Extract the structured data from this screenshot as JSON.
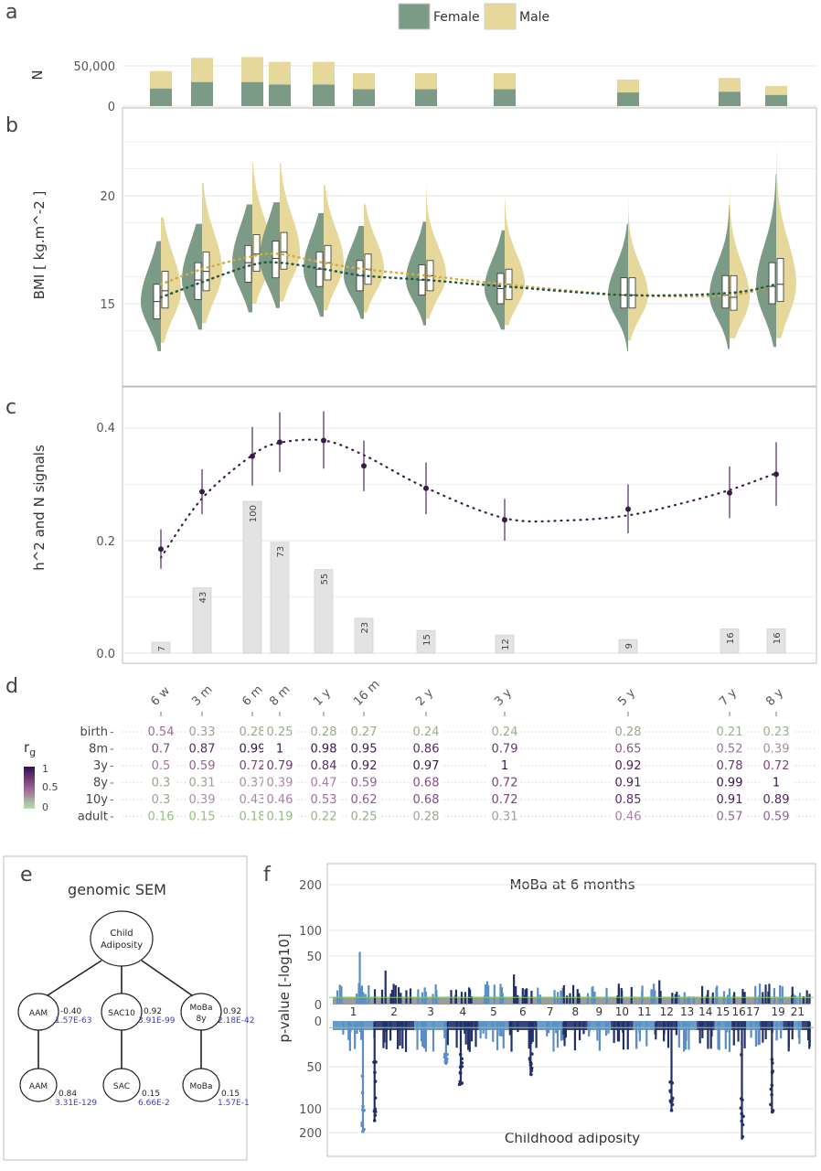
{
  "panel_letters": [
    "a",
    "b",
    "c",
    "d",
    "e",
    "f"
  ],
  "colors": {
    "female": "#7c9b87",
    "male": "#e6d89b",
    "female_line": "#24584a",
    "male_line": "#cfae3e",
    "h2_point": "#3b1a4a",
    "n_bar": "#e3e3e3",
    "grid": "#e6e6e6",
    "manhattan_light": "#5b8ec6",
    "manhattan_dark": "#22306a",
    "manhattan_grey": "#8a8a8a",
    "sem_blue": "#3f3fbf"
  },
  "chart_data": [
    {
      "panel": "a",
      "type": "bar",
      "stacked": true,
      "ylabel": "N",
      "yticks": [
        0,
        50000
      ],
      "ytick_labels": [
        "0",
        "50,000"
      ],
      "ylim": [
        0,
        70000
      ],
      "legend": {
        "position": "top",
        "entries": [
          "Female",
          "Male"
        ]
      },
      "categories": [
        "6 w",
        "3 m",
        "6 m",
        "8 m",
        "1 y",
        "16 m",
        "2 y",
        "3 y",
        "5 y",
        "7 y",
        "8 y"
      ],
      "x_months": [
        1.5,
        3,
        6,
        8,
        12,
        16,
        24,
        36,
        60,
        84,
        96
      ],
      "series": [
        {
          "name": "Female",
          "values": [
            22000,
            30000,
            30000,
            27000,
            27000,
            21000,
            21000,
            21000,
            17000,
            18000,
            14000
          ]
        },
        {
          "name": "Male",
          "values": [
            21500,
            30000,
            31000,
            28000,
            28000,
            20000,
            20000,
            20000,
            16000,
            17000,
            11000
          ]
        }
      ]
    },
    {
      "panel": "b",
      "type": "violin",
      "ylabel": "BMI [ kg.m^-2 ]",
      "yticks": [
        15,
        20
      ],
      "ylim": [
        12.5,
        23.5
      ],
      "categories": [
        "6 w",
        "3 m",
        "6 m",
        "8 m",
        "1 y",
        "16 m",
        "2 y",
        "3 y",
        "5 y",
        "7 y",
        "8 y"
      ],
      "series": [
        {
          "name": "Female",
          "median": [
            15.1,
            16.1,
            16.9,
            17.1,
            16.6,
            16.3,
            16.1,
            15.7,
            15.4,
            15.4,
            15.8
          ],
          "q1": [
            14.3,
            15.2,
            16.0,
            16.2,
            15.8,
            15.6,
            15.4,
            15.0,
            14.8,
            14.8,
            15.0
          ],
          "q3": [
            15.9,
            16.9,
            17.7,
            17.9,
            17.4,
            17.0,
            16.8,
            16.4,
            16.2,
            16.3,
            16.9
          ],
          "min": [
            12.8,
            13.8,
            14.6,
            14.8,
            14.4,
            14.3,
            14.0,
            13.8,
            12.8,
            12.9,
            13.0
          ],
          "max": [
            17.9,
            18.7,
            19.6,
            19.7,
            19.2,
            18.6,
            18.8,
            18.4,
            18.7,
            19.6,
            21.0
          ]
        },
        {
          "name": "Male",
          "median": [
            15.6,
            16.5,
            17.3,
            17.4,
            16.9,
            16.6,
            16.3,
            15.9,
            15.4,
            15.3,
            15.9
          ],
          "q1": [
            14.8,
            15.6,
            16.5,
            16.6,
            16.1,
            15.9,
            15.6,
            15.2,
            14.8,
            14.7,
            15.1
          ],
          "q3": [
            16.5,
            17.4,
            18.2,
            18.3,
            17.7,
            17.3,
            17.0,
            16.6,
            16.2,
            16.3,
            17.1
          ],
          "min": [
            13.2,
            14.1,
            15.0,
            15.1,
            14.7,
            14.6,
            14.3,
            14.0,
            13.3,
            13.4,
            13.4
          ],
          "max": [
            19.0,
            20.6,
            21.5,
            21.5,
            20.5,
            19.6,
            20.5,
            19.9,
            20.0,
            21.9,
            23.0
          ]
        }
      ],
      "trend_lines": {
        "Female": [
          15.3,
          16.0,
          16.8,
          16.9,
          16.6,
          16.3,
          16.1,
          15.8,
          15.4,
          15.5,
          15.9
        ],
        "Male": [
          15.9,
          16.6,
          17.2,
          17.3,
          16.9,
          16.6,
          16.3,
          15.9,
          15.4,
          15.4,
          15.9
        ]
      }
    },
    {
      "panel": "c",
      "type": "line+bar",
      "ylabel": "h^2 and N signals",
      "yticks": [
        0.0,
        0.2,
        0.4
      ],
      "ytick_labels": [
        "0.0",
        "0.2",
        "0.4"
      ],
      "ylim": [
        -0.01,
        0.465
      ],
      "categories": [
        "6 w",
        "3 m",
        "6 m",
        "8 m",
        "1 y",
        "16 m",
        "2 y",
        "3 y",
        "5 y",
        "7 y",
        "8 y"
      ],
      "h2": [
        0.185,
        0.287,
        0.35,
        0.375,
        0.378,
        0.333,
        0.293,
        0.237,
        0.256,
        0.285,
        0.318
      ],
      "h2_lo": [
        0.15,
        0.247,
        0.298,
        0.322,
        0.328,
        0.288,
        0.247,
        0.2,
        0.213,
        0.24,
        0.262
      ],
      "h2_hi": [
        0.22,
        0.327,
        0.402,
        0.428,
        0.43,
        0.378,
        0.339,
        0.274,
        0.3,
        0.332,
        0.375
      ],
      "h2_curve_x_months": [
        1.5,
        3,
        6,
        8,
        12,
        16,
        24,
        36,
        48,
        60,
        72,
        84,
        96
      ],
      "h2_curve": [
        0.17,
        0.275,
        0.352,
        0.374,
        0.378,
        0.352,
        0.294,
        0.24,
        0.236,
        0.245,
        0.265,
        0.29,
        0.32
      ],
      "n_signals": [
        7,
        43,
        100,
        73,
        55,
        23,
        15,
        12,
        9,
        16,
        16
      ]
    },
    {
      "panel": "d",
      "type": "table",
      "legend_title": "r_g",
      "legend_ticks": [
        "1",
        "0.5",
        "0"
      ],
      "rows": [
        "birth",
        "8m",
        "3y",
        "8y",
        "10y",
        "adult"
      ],
      "columns": [
        "6 w",
        "3 m",
        "6 m",
        "8 m",
        "1 y",
        "16 m",
        "2 y",
        "3 y",
        "5 y",
        "7 y",
        "8 y"
      ],
      "values": [
        [
          "0.54",
          "0.33",
          "0.28",
          "0.25",
          "0.28",
          "0.27",
          "0.24",
          "0.24",
          "0.28",
          "0.21",
          "0.23"
        ],
        [
          "0.7",
          "0.87",
          "0.99",
          "1",
          "0.98",
          "0.95",
          "0.86",
          "0.79",
          "0.65",
          "0.52",
          "0.39"
        ],
        [
          "0.5",
          "0.59",
          "0.72",
          "0.79",
          "0.84",
          "0.92",
          "0.97",
          "1",
          "0.92",
          "0.78",
          "0.72"
        ],
        [
          "0.3",
          "0.31",
          "0.37",
          "0.39",
          "0.47",
          "0.59",
          "0.68",
          "0.72",
          "0.91",
          "0.99",
          "1"
        ],
        [
          "0.3",
          "0.39",
          "0.43",
          "0.46",
          "0.53",
          "0.62",
          "0.68",
          "0.72",
          "0.85",
          "0.91",
          "0.89"
        ],
        [
          "0.16",
          "0.15",
          "0.18",
          "0.19",
          "0.22",
          "0.25",
          "0.28",
          "0.31",
          "0.46",
          "0.57",
          "0.59"
        ]
      ]
    },
    {
      "panel": "e",
      "type": "diagram",
      "title": "genomic SEM",
      "root": {
        "line1": "Child",
        "line2": "Adiposity"
      },
      "latent": [
        {
          "label": "AAM",
          "label2": "",
          "loading": "-0.40",
          "pvalue": "1.57E-63"
        },
        {
          "label": "SAC10",
          "label2": "",
          "loading": "0.92",
          "pvalue": "3.91E-99"
        },
        {
          "label": "MoBa",
          "label2": "8y",
          "loading": "0.92",
          "pvalue": "2.18E-42"
        }
      ],
      "observed": [
        {
          "label": "AAM",
          "loading": "0.84",
          "pvalue": "3.31E-129"
        },
        {
          "label": "SAC",
          "loading": "0.15",
          "pvalue": "6.66E-2"
        },
        {
          "label": "MoBa",
          "loading": "0.15",
          "pvalue": "1.57E-1"
        }
      ]
    },
    {
      "panel": "f",
      "type": "miami",
      "ylabel": "p-value [-log10]",
      "top_title": "MoBa at 6 months",
      "bottom_title": "Childhood adiposity",
      "top_yticks": [
        "200",
        "100",
        "50",
        "0"
      ],
      "bottom_yticks": [
        "0",
        "50",
        "100",
        "200"
      ],
      "chromosomes": [
        "1",
        "2",
        "3",
        "4",
        "5",
        "6",
        "7",
        "8",
        "9",
        "10",
        "11",
        "12",
        "13",
        "14",
        "15",
        "16",
        "17",
        "19",
        "21"
      ],
      "top_peaks": [
        {
          "chr": "1",
          "max_log10p": 58
        },
        {
          "chr": "2",
          "max_log10p": 35
        },
        {
          "chr": "6",
          "max_log10p": 31
        },
        {
          "chr": "5",
          "max_log10p": 24
        },
        {
          "chr": "10",
          "max_log10p": 18
        },
        {
          "chr": "12",
          "max_log10p": 25
        },
        {
          "chr": "16",
          "max_log10p": 16
        }
      ],
      "bottom_peaks": [
        {
          "chr": "1",
          "max_log10p": 200
        },
        {
          "chr": "2",
          "max_log10p": 150
        },
        {
          "chr": "3",
          "max_log10p": 48
        },
        {
          "chr": "4",
          "max_log10p": 72
        },
        {
          "chr": "6",
          "max_log10p": 60
        },
        {
          "chr": "12",
          "max_log10p": 110
        },
        {
          "chr": "16",
          "max_log10p": 230
        },
        {
          "chr": "18",
          "max_log10p": 115
        }
      ]
    }
  ]
}
